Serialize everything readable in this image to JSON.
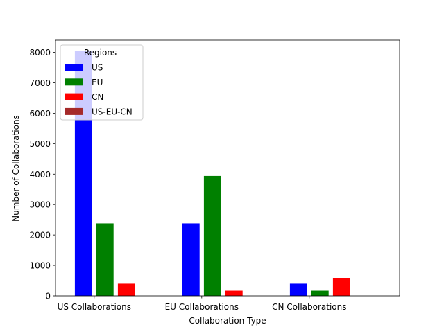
{
  "chart_data": {
    "type": "bar",
    "title": "",
    "xlabel": "Collaboration Type",
    "ylabel": "Number of Collaborations",
    "categories": [
      "US Collaborations",
      "EU Collaborations",
      "CN Collaborations"
    ],
    "series": [
      {
        "name": "US",
        "color": "#0000ff",
        "values": [
          8050,
          2380,
          400
        ]
      },
      {
        "name": "EU",
        "color": "#008000",
        "values": [
          2380,
          3940,
          170
        ]
      },
      {
        "name": "CN",
        "color": "#ff0000",
        "values": [
          400,
          170,
          580
        ]
      },
      {
        "name": "US-EU-CN",
        "color": "#a52a2a",
        "values": [
          0,
          0,
          0
        ]
      }
    ],
    "ylim": [
      0,
      8400
    ],
    "yticks": [
      0,
      1000,
      2000,
      3000,
      4000,
      5000,
      6000,
      7000,
      8000
    ],
    "grid": false,
    "legend": {
      "title": "Regions",
      "placement": "upper-left"
    }
  }
}
